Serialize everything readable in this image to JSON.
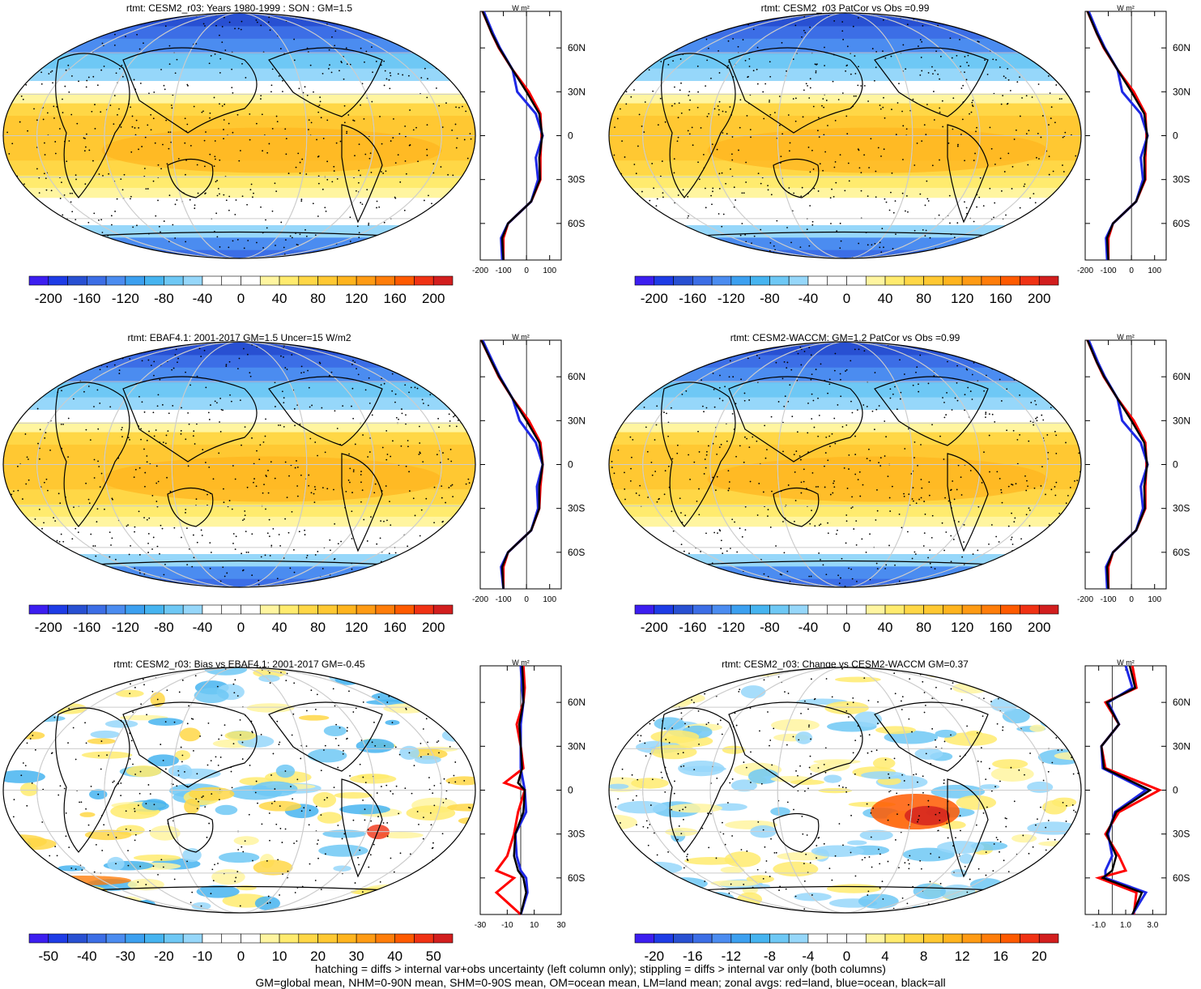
{
  "colors": {
    "diverging22": [
      "#3c1ef0",
      "#1e3ce6",
      "#2850d2",
      "#3c6ee6",
      "#4b8cf0",
      "#3ca0f0",
      "#46b4f0",
      "#6ec8f5",
      "#96d7fa",
      "#ffffff",
      "#ffffff",
      "#ffffff",
      "#fff5a0",
      "#ffeb6e",
      "#ffd746",
      "#ffc832",
      "#ffb41e",
      "#ff9b14",
      "#ff7d0a",
      "#ff5a00",
      "#f03214",
      "#d21e1e"
    ],
    "land_line": "#ff0000",
    "ocean_line": "#1e28e6",
    "all_line": "#000000"
  },
  "panels": [
    {
      "id": "p1",
      "title": "rtmt: CESM2_r03: Years 1980-1999 : SON : GM=1.5",
      "colorbar_labels": [
        "-200",
        "-160",
        "-120",
        "-80",
        "-40",
        "0",
        "40",
        "80",
        "120",
        "160",
        "200"
      ],
      "zonal": {
        "unit": "W m²",
        "x_tick_labels": [
          "-200",
          "-100",
          "0",
          "100"
        ],
        "y_tick_labels": [
          "60N",
          "30N",
          "0",
          "30S",
          "60S"
        ]
      }
    },
    {
      "id": "p2",
      "title": "rtmt: CESM2_r03 PatCor vs Obs =0.99",
      "colorbar_labels": [
        "-200",
        "-160",
        "-120",
        "-80",
        "-40",
        "0",
        "40",
        "80",
        "120",
        "160",
        "200"
      ],
      "zonal": {
        "unit": "W m²",
        "x_tick_labels": [
          "-200",
          "-100",
          "0",
          "100"
        ],
        "y_tick_labels": [
          "60N",
          "30N",
          "0",
          "30S",
          "60S"
        ]
      }
    },
    {
      "id": "p3",
      "title": "rtmt: EBAF4.1: 2001-2017 GM=1.5 Uncer=15 W/m2",
      "colorbar_labels": [
        "-200",
        "-160",
        "-120",
        "-80",
        "-40",
        "0",
        "40",
        "80",
        "120",
        "160",
        "200"
      ],
      "zonal": {
        "unit": "W m²",
        "x_tick_labels": [
          "-200",
          "-100",
          "0",
          "100"
        ],
        "y_tick_labels": [
          "60N",
          "30N",
          "0",
          "30S",
          "60S"
        ]
      }
    },
    {
      "id": "p4",
      "title": "rtmt: CESM2-WACCM: GM=1.2 PatCor vs Obs =0.99",
      "colorbar_labels": [
        "-200",
        "-160",
        "-120",
        "-80",
        "-40",
        "0",
        "40",
        "80",
        "120",
        "160",
        "200"
      ],
      "zonal": {
        "unit": "W m²",
        "x_tick_labels": [
          "-200",
          "-100",
          "0",
          "100"
        ],
        "y_tick_labels": [
          "60N",
          "30N",
          "0",
          "30S",
          "60S"
        ]
      }
    },
    {
      "id": "p5",
      "title": "rtmt: CESM2_r03: Bias vs EBAF4.1: 2001-2017  GM=-0.45",
      "colorbar_labels": [
        "-50",
        "-40",
        "-30",
        "-20",
        "-10",
        "0",
        "10",
        "20",
        "30",
        "40",
        "50"
      ],
      "zonal": {
        "unit": "W m²",
        "x_tick_labels": [
          "-30",
          "-10",
          "10",
          "30"
        ],
        "y_tick_labels": [
          "60N",
          "30N",
          "0",
          "30S",
          "60S"
        ]
      }
    },
    {
      "id": "p6",
      "title": "rtmt: CESM2_r03: Change vs CESM2-WACCM GM=0.37",
      "colorbar_labels": [
        "-20",
        "-16",
        "-12",
        "-8",
        "-4",
        "0",
        "4",
        "8",
        "12",
        "16",
        "20"
      ],
      "zonal": {
        "unit": "W m²",
        "x_tick_labels": [
          "-1.0",
          "1.0",
          "3.0"
        ],
        "y_tick_labels": [
          "60N",
          "30N",
          "0",
          "30S",
          "60S"
        ]
      }
    }
  ],
  "chart_data": [
    {
      "type": "heatmap",
      "title": "rtmt: CESM2_r03: Years 1980-1999 : SON : GM=1.5",
      "colorbar_range": [
        -200,
        200
      ],
      "zonal_mean": {
        "type": "line",
        "lat": [
          85,
          70,
          60,
          45,
          30,
          15,
          0,
          -15,
          -30,
          -45,
          -60,
          -70,
          -85
        ],
        "series": [
          {
            "values": [
              -190,
              -150,
              -120,
              -60,
              10,
              60,
              65,
              60,
              60,
              20,
              -80,
              -100,
              -100
            ]
          },
          {
            "values": [
              -185,
              -145,
              -115,
              -60,
              -40,
              40,
              70,
              40,
              50,
              20,
              -80,
              -110,
              -105
            ]
          },
          {
            "values": [
              -190,
              -150,
              -118,
              -60,
              0,
              55,
              68,
              55,
              58,
              20,
              -80,
              -105,
              -100
            ]
          }
        ]
      }
    },
    {
      "type": "heatmap",
      "title": "rtmt: CESM2_r03 PatCor vs Obs =0.99",
      "colorbar_range": [
        -200,
        200
      ],
      "zonal_mean": {
        "type": "line",
        "lat": [
          85,
          70,
          60,
          45,
          30,
          15,
          0,
          -15,
          -30,
          -45,
          -60,
          -70,
          -85
        ],
        "series": [
          {
            "values": [
              -190,
              -150,
              -120,
              -60,
              10,
              60,
              65,
              60,
              60,
              20,
              -80,
              -100,
              -100
            ]
          },
          {
            "values": [
              -185,
              -145,
              -115,
              -60,
              -40,
              40,
              70,
              40,
              50,
              20,
              -80,
              -110,
              -105
            ]
          },
          {
            "values": [
              -190,
              -150,
              -118,
              -60,
              0,
              55,
              68,
              55,
              58,
              20,
              -80,
              -105,
              -100
            ]
          }
        ]
      }
    },
    {
      "type": "heatmap",
      "title": "rtmt: EBAF4.1: 2001-2017 GM=1.5 Uncer=15 W/m2",
      "colorbar_range": [
        -200,
        200
      ],
      "zonal_mean": {
        "type": "line",
        "lat": [
          85,
          70,
          60,
          45,
          30,
          15,
          0,
          -15,
          -30,
          -45,
          -60,
          -70,
          -85
        ],
        "series": [
          {
            "values": [
              -195,
              -150,
              -120,
              -60,
              10,
              60,
              70,
              60,
              55,
              20,
              -80,
              -100,
              -100
            ]
          },
          {
            "values": [
              -190,
              -145,
              -115,
              -60,
              -30,
              40,
              70,
              45,
              50,
              20,
              -80,
              -110,
              -100
            ]
          },
          {
            "values": [
              -195,
              -150,
              -118,
              -60,
              0,
              55,
              70,
              55,
              55,
              20,
              -80,
              -105,
              -100
            ]
          }
        ]
      }
    },
    {
      "type": "heatmap",
      "title": "rtmt: CESM2-WACCM: GM=1.2 PatCor vs Obs =0.99",
      "colorbar_range": [
        -200,
        200
      ],
      "zonal_mean": {
        "type": "line",
        "lat": [
          85,
          70,
          60,
          45,
          30,
          15,
          0,
          -15,
          -30,
          -45,
          -60,
          -70,
          -85
        ],
        "series": [
          {
            "values": [
              -190,
              -150,
              -120,
              -60,
              10,
              60,
              65,
              60,
              60,
              20,
              -80,
              -100,
              -100
            ]
          },
          {
            "values": [
              -185,
              -145,
              -115,
              -60,
              -40,
              40,
              70,
              40,
              50,
              20,
              -80,
              -110,
              -105
            ]
          },
          {
            "values": [
              -190,
              -150,
              -118,
              -60,
              0,
              55,
              68,
              55,
              58,
              20,
              -80,
              -105,
              -100
            ]
          }
        ]
      }
    },
    {
      "type": "heatmap",
      "title": "rtmt: CESM2_r03: Bias vs EBAF4.1: 2001-2017  GM=-0.45",
      "colorbar_range": [
        -50,
        50
      ],
      "zonal_mean": {
        "type": "line",
        "lat": [
          85,
          70,
          60,
          45,
          30,
          15,
          5,
          0,
          -15,
          -30,
          -45,
          -55,
          -60,
          -70,
          -85
        ],
        "series": [
          {
            "values": [
              2,
              3,
              2,
              -3,
              0,
              2,
              -12,
              3,
              -2,
              -5,
              -10,
              -18,
              -5,
              -18,
              0
            ]
          },
          {
            "values": [
              0,
              1,
              2,
              0,
              0,
              0,
              2,
              3,
              4,
              -4,
              -3,
              0,
              4,
              5,
              0
            ]
          },
          {
            "values": [
              1,
              2,
              2,
              -1,
              0,
              1,
              -2,
              3,
              2,
              -4,
              -5,
              -2,
              2,
              4,
              0
            ]
          }
        ]
      }
    },
    {
      "type": "heatmap",
      "title": "rtmt: CESM2_r03: Change vs CESM2-WACCM GM=0.37",
      "colorbar_range": [
        -20,
        20
      ],
      "zonal_mean": {
        "type": "line",
        "lat": [
          85,
          70,
          60,
          45,
          30,
          15,
          0,
          -15,
          -30,
          -45,
          -55,
          -60,
          -70,
          -85
        ],
        "series": [
          {
            "values": [
              1.5,
              1.8,
              -0.5,
              0.5,
              -0.8,
              -0.5,
              3.5,
              0.5,
              -0.5,
              0.5,
              1.0,
              -1.0,
              1.8,
              1.6
            ]
          },
          {
            "values": [
              1.0,
              1.5,
              -0.3,
              0.5,
              -0.8,
              -0.7,
              2.5,
              0.2,
              -0.3,
              0.0,
              -0.5,
              -0.5,
              2.5,
              1.5
            ]
          },
          {
            "values": [
              1.3,
              1.7,
              -0.4,
              0.5,
              -0.8,
              -0.6,
              2.8,
              0.3,
              -0.4,
              0.3,
              0.0,
              -0.7,
              2.2,
              1.5
            ]
          }
        ]
      }
    }
  ],
  "footer": {
    "line1": "hatching = diffs > internal var+obs uncertainty (left column only); stippling = diffs > internal var only (both columns)",
    "line2": "GM=global mean, NHM=0-90N mean, SHM=0-90S mean, OM=ocean mean, LM=land mean; zonal avgs: red=land, blue=ocean, black=all"
  }
}
